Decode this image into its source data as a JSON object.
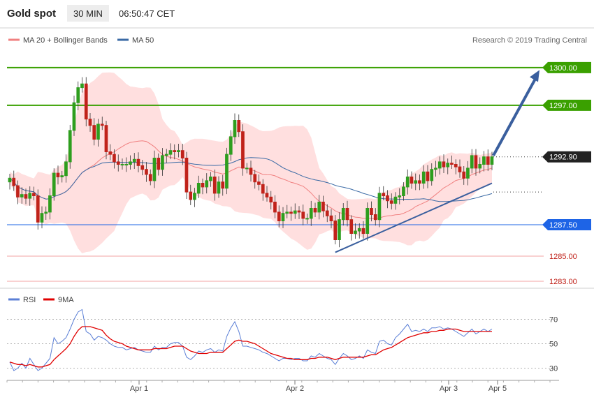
{
  "header": {
    "instrument": "Gold spot",
    "timeframe": "30 MIN",
    "time": "06:50:47 CET"
  },
  "legend": {
    "ma20": "MA 20 + Bollinger Bands",
    "ma50": "MA 50",
    "ma20_color": "#f08080",
    "ma50_color": "#3a6aa5"
  },
  "credit": "Research © 2019 Trading Central",
  "rsi_legend": {
    "rsi": "RSI",
    "ma9": "9MA",
    "rsi_color": "#5b7fd6",
    "ma9_color": "#e00000"
  },
  "colors": {
    "up": "#2e9e1e",
    "down": "#c0221a",
    "band_fill": "#ffd9d9",
    "trend": "#3a5f9e",
    "support": "#1e64e6",
    "resistance": "#3aa000"
  },
  "chart_data": [
    {
      "type": "candlestick",
      "instrument": "Gold spot",
      "ylim": [
        1282.5,
        1301.6
      ],
      "x_ticks": [
        "Apr 1",
        "Apr 2",
        "Apr 3",
        "Apr 5"
      ],
      "price_levels": [
        {
          "value": 1300.0,
          "label": "1300.00",
          "kind": "resistance"
        },
        {
          "value": 1297.0,
          "label": "1297.00",
          "kind": "resistance"
        },
        {
          "value": 1292.9,
          "label": "1292.90",
          "kind": "last"
        },
        {
          "value": 1287.5,
          "label": "1287.50",
          "kind": "support"
        },
        {
          "value": 1285.0,
          "label": "1285.00",
          "kind": "level"
        },
        {
          "value": 1283.0,
          "label": "1283.00",
          "kind": "level"
        }
      ],
      "closes": [
        1291.2,
        1290.6,
        1289.7,
        1289.9,
        1289.6,
        1290.0,
        1289.8,
        1287.7,
        1288.4,
        1288.5,
        1289.8,
        1291.6,
        1291.3,
        1291.4,
        1292.5,
        1295.0,
        1297.2,
        1298.4,
        1298.7,
        1295.9,
        1295.4,
        1294.3,
        1295.5,
        1295.4,
        1293.3,
        1293.1,
        1292.5,
        1292.3,
        1292.3,
        1292.3,
        1292.5,
        1292.7,
        1292.2,
        1291.9,
        1291.5,
        1291.0,
        1292.8,
        1291.9,
        1293.0,
        1293.1,
        1293.4,
        1293.3,
        1293.4,
        1292.8,
        1290.1,
        1289.5,
        1290.0,
        1290.8,
        1290.5,
        1291.0,
        1291.3,
        1290.0,
        1290.9,
        1290.4,
        1293.1,
        1294.5,
        1295.8,
        1294.9,
        1292.0,
        1292.0,
        1291.5,
        1290.9,
        1290.7,
        1290.0,
        1289.7,
        1289.3,
        1288.5,
        1287.8,
        1288.4,
        1288.5,
        1288.4,
        1288.6,
        1288.5,
        1288.0,
        1288.0,
        1288.8,
        1288.5,
        1289.3,
        1288.6,
        1288.2,
        1287.8,
        1286.3,
        1287.9,
        1288.8,
        1287.9,
        1286.8,
        1287.0,
        1287.2,
        1286.8,
        1288.8,
        1288.3,
        1287.9,
        1290.0,
        1289.8,
        1289.4,
        1289.2,
        1289.7,
        1289.8,
        1290.5,
        1291.3,
        1290.8,
        1291.0,
        1290.8,
        1291.7,
        1291.0,
        1291.9,
        1292.0,
        1292.5,
        1292.1,
        1292.4,
        1292.3,
        1292.1,
        1291.7,
        1291.2,
        1292.0,
        1293.0,
        1292.0,
        1292.3,
        1292.9,
        1292.3,
        1292.9
      ]
    },
    {
      "type": "line",
      "name": "RSI",
      "ylim": [
        20,
        80
      ],
      "y_ticks": [
        70,
        50,
        30
      ],
      "series": [
        {
          "name": "RSI",
          "values": [
            35,
            28,
            30,
            34,
            30,
            38,
            33,
            28,
            30,
            34,
            38,
            55,
            50,
            52,
            55,
            62,
            70,
            76,
            78,
            60,
            58,
            53,
            56,
            55,
            53,
            50,
            48,
            47,
            47,
            45,
            46,
            47,
            45,
            44,
            43,
            43,
            48,
            45,
            47,
            47,
            50,
            51,
            51,
            48,
            39,
            37,
            40,
            44,
            43,
            45,
            46,
            43,
            45,
            44,
            56,
            63,
            68,
            60,
            48,
            48,
            47,
            46,
            45,
            43,
            42,
            40,
            38,
            36,
            38,
            38,
            37,
            38,
            38,
            36,
            36,
            40,
            39,
            42,
            40,
            38,
            37,
            33,
            38,
            42,
            40,
            37,
            38,
            40,
            38,
            45,
            43,
            42,
            52,
            53,
            50,
            49,
            55,
            58,
            62,
            66,
            60,
            61,
            60,
            62,
            60,
            63,
            63,
            64,
            62,
            63,
            62,
            60,
            58,
            56,
            59,
            62,
            58,
            60,
            62,
            60,
            62
          ]
        },
        {
          "name": "9MA",
          "values": [
            35,
            34,
            33,
            33,
            32,
            33,
            32,
            31,
            31,
            32,
            33,
            37,
            40,
            43,
            46,
            50,
            56,
            61,
            64,
            64,
            64,
            63,
            62,
            61,
            57,
            54,
            52,
            51,
            50,
            48,
            47,
            46,
            45,
            45,
            45,
            45,
            46,
            46,
            46,
            46,
            47,
            48,
            48,
            48,
            46,
            44,
            43,
            42,
            42,
            42,
            43,
            43,
            43,
            43,
            46,
            49,
            52,
            53,
            52,
            52,
            51,
            50,
            48,
            46,
            44,
            42,
            41,
            40,
            39,
            38,
            38,
            37,
            37,
            37,
            37,
            38,
            38,
            39,
            39,
            39,
            38,
            37,
            38,
            39,
            39,
            39,
            39,
            39,
            39,
            40,
            41,
            41,
            43,
            45,
            46,
            47,
            49,
            51,
            53,
            55,
            56,
            57,
            58,
            59,
            59,
            60,
            60,
            61,
            61,
            62,
            62,
            62,
            61,
            60,
            60,
            60,
            60,
            60,
            60,
            60,
            60
          ]
        }
      ],
      "x_ticks": [
        "Apr 1",
        "Apr 2",
        "Apr 3",
        "Apr 5"
      ]
    }
  ]
}
